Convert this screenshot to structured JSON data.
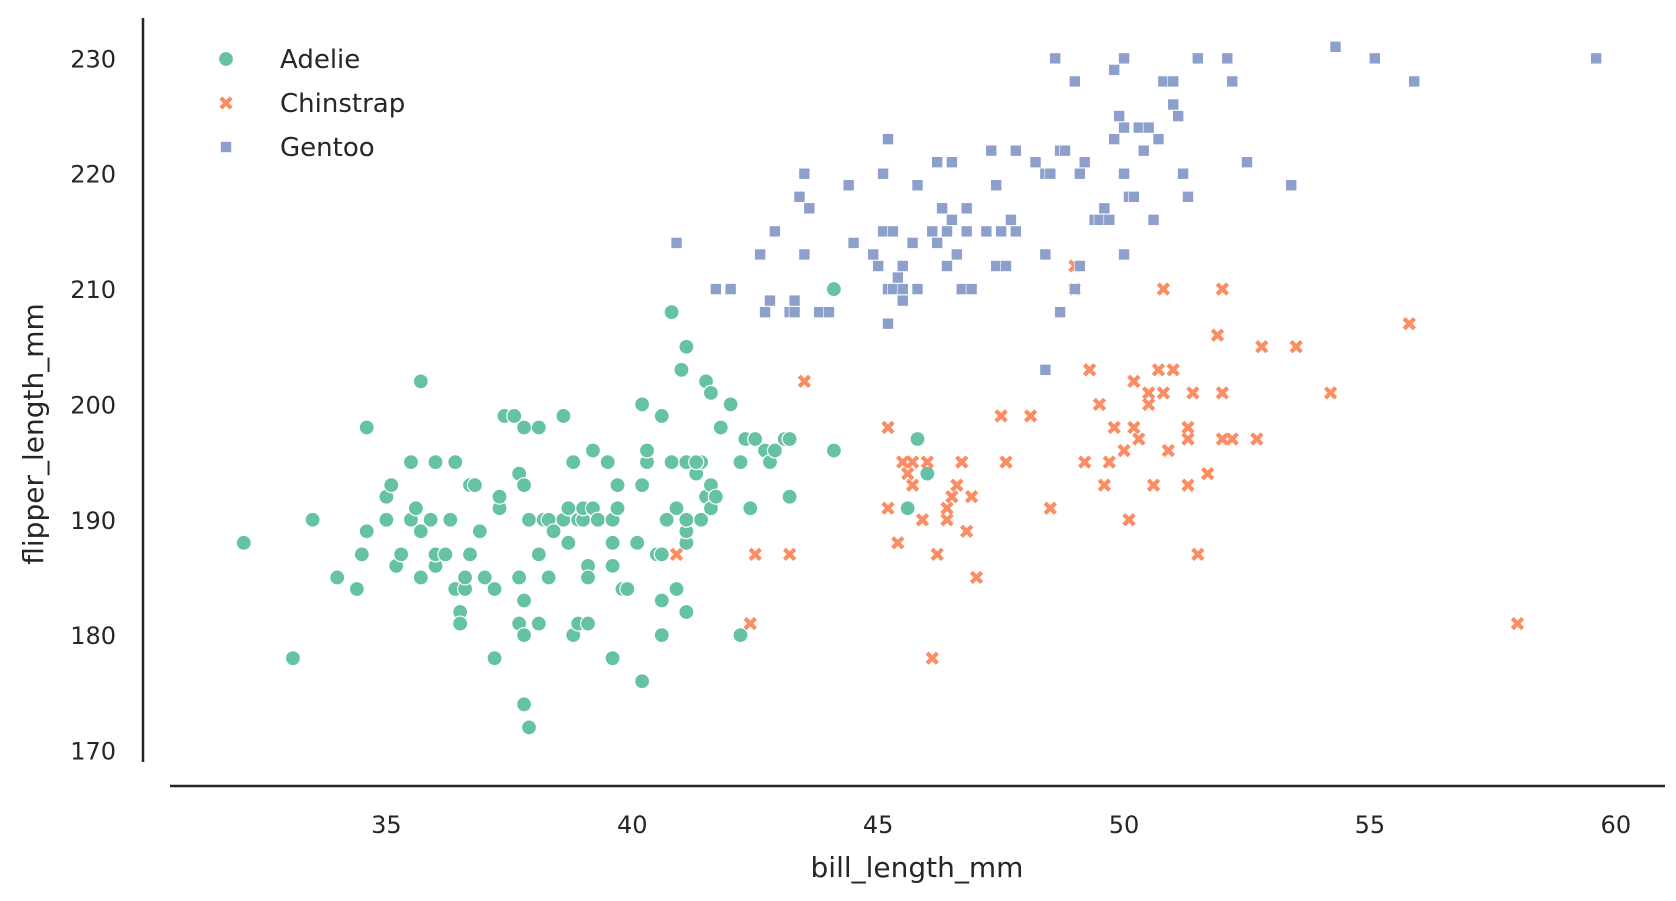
{
  "chart_data": {
    "type": "scatter",
    "xlabel": "bill_length_mm",
    "ylabel": "flipper_length_mm",
    "xlim": [
      30.6,
      61.0
    ],
    "ylim": [
      169.0,
      233.5
    ],
    "xticks": [
      35,
      40,
      45,
      50,
      55,
      60
    ],
    "yticks": [
      170,
      180,
      190,
      200,
      210,
      220,
      230
    ],
    "xtick_labels": [
      "35",
      "40",
      "45",
      "50",
      "55",
      "60"
    ],
    "ytick_labels": [
      "170",
      "180",
      "190",
      "200",
      "210",
      "220",
      "230"
    ],
    "grid": false,
    "legend": {
      "position": "top-left",
      "entries": [
        "Adelie",
        "Chinstrap",
        "Gentoo"
      ]
    },
    "series": [
      {
        "name": "Adelie",
        "marker": "circle",
        "color": "#66c2a5",
        "points": [
          [
            32.1,
            188
          ],
          [
            33.1,
            178
          ],
          [
            33.5,
            190
          ],
          [
            34.0,
            185
          ],
          [
            34.4,
            184
          ],
          [
            34.5,
            187
          ],
          [
            34.6,
            189
          ],
          [
            34.6,
            198
          ],
          [
            35.0,
            190
          ],
          [
            35.0,
            192
          ],
          [
            35.1,
            193
          ],
          [
            35.2,
            186
          ],
          [
            35.3,
            187
          ],
          [
            35.5,
            190
          ],
          [
            35.5,
            195
          ],
          [
            35.6,
            191
          ],
          [
            35.7,
            202
          ],
          [
            35.7,
            185
          ],
          [
            35.7,
            189
          ],
          [
            35.9,
            190
          ],
          [
            36.0,
            195
          ],
          [
            36.0,
            186
          ],
          [
            36.0,
            187
          ],
          [
            36.2,
            187
          ],
          [
            36.3,
            190
          ],
          [
            36.4,
            184
          ],
          [
            36.4,
            195
          ],
          [
            36.5,
            182
          ],
          [
            36.5,
            181
          ],
          [
            36.6,
            184
          ],
          [
            36.6,
            185
          ],
          [
            36.7,
            187
          ],
          [
            36.7,
            193
          ],
          [
            36.8,
            193
          ],
          [
            36.9,
            189
          ],
          [
            37.0,
            185
          ],
          [
            37.2,
            178
          ],
          [
            37.2,
            184
          ],
          [
            37.3,
            191
          ],
          [
            37.3,
            192
          ],
          [
            37.4,
            199
          ],
          [
            37.6,
            199
          ],
          [
            37.7,
            194
          ],
          [
            37.7,
            185
          ],
          [
            37.7,
            181
          ],
          [
            37.8,
            193
          ],
          [
            37.8,
            180
          ],
          [
            37.8,
            183
          ],
          [
            37.8,
            198
          ],
          [
            37.9,
            190
          ],
          [
            37.8,
            174
          ],
          [
            37.9,
            172
          ],
          [
            38.1,
            198
          ],
          [
            38.1,
            187
          ],
          [
            38.1,
            181
          ],
          [
            38.2,
            190
          ],
          [
            38.3,
            185
          ],
          [
            38.3,
            190
          ],
          [
            38.4,
            189
          ],
          [
            38.6,
            190
          ],
          [
            38.6,
            199
          ],
          [
            38.7,
            188
          ],
          [
            38.7,
            191
          ],
          [
            38.8,
            195
          ],
          [
            38.8,
            180
          ],
          [
            38.9,
            190
          ],
          [
            38.9,
            181
          ],
          [
            39.0,
            190
          ],
          [
            39.0,
            191
          ],
          [
            39.1,
            181
          ],
          [
            39.1,
            186
          ],
          [
            39.1,
            185
          ],
          [
            39.2,
            191
          ],
          [
            39.2,
            196
          ],
          [
            39.3,
            190
          ],
          [
            39.5,
            195
          ],
          [
            39.6,
            178
          ],
          [
            39.6,
            188
          ],
          [
            39.6,
            186
          ],
          [
            39.6,
            190
          ],
          [
            39.7,
            193
          ],
          [
            39.7,
            191
          ],
          [
            39.8,
            184
          ],
          [
            39.9,
            184
          ],
          [
            40.1,
            188
          ],
          [
            40.2,
            176
          ],
          [
            40.2,
            200
          ],
          [
            40.2,
            193
          ],
          [
            40.3,
            195
          ],
          [
            40.3,
            196
          ],
          [
            40.5,
            187
          ],
          [
            40.6,
            187
          ],
          [
            40.6,
            180
          ],
          [
            40.6,
            183
          ],
          [
            40.6,
            199
          ],
          [
            40.7,
            190
          ],
          [
            40.8,
            195
          ],
          [
            40.8,
            208
          ],
          [
            40.9,
            191
          ],
          [
            40.9,
            184
          ],
          [
            41.0,
            203
          ],
          [
            41.1,
            188
          ],
          [
            41.1,
            189
          ],
          [
            41.1,
            190
          ],
          [
            41.1,
            182
          ],
          [
            41.1,
            205
          ],
          [
            41.3,
            194
          ],
          [
            41.4,
            195
          ],
          [
            41.5,
            202
          ],
          [
            41.6,
            201
          ],
          [
            41.5,
            192
          ],
          [
            41.6,
            193
          ],
          [
            41.1,
            195
          ],
          [
            41.3,
            195
          ],
          [
            41.4,
            190
          ],
          [
            41.6,
            191
          ],
          [
            41.7,
            192
          ],
          [
            41.8,
            198
          ],
          [
            42.0,
            200
          ],
          [
            42.2,
            195
          ],
          [
            42.2,
            180
          ],
          [
            42.3,
            197
          ],
          [
            42.4,
            191
          ],
          [
            42.5,
            197
          ],
          [
            42.7,
            196
          ],
          [
            42.8,
            195
          ],
          [
            42.9,
            196
          ],
          [
            43.1,
            197
          ],
          [
            43.2,
            197
          ],
          [
            43.2,
            192
          ],
          [
            44.1,
            196
          ],
          [
            44.1,
            210
          ],
          [
            45.6,
            191
          ],
          [
            45.8,
            197
          ],
          [
            46.0,
            194
          ]
        ]
      },
      {
        "name": "Chinstrap",
        "marker": "x",
        "color": "#fc8d62",
        "points": [
          [
            40.9,
            187
          ],
          [
            42.4,
            181
          ],
          [
            42.5,
            187
          ],
          [
            43.2,
            187
          ],
          [
            43.5,
            202
          ],
          [
            45.2,
            191
          ],
          [
            45.2,
            198
          ],
          [
            45.4,
            188
          ],
          [
            45.5,
            195
          ],
          [
            45.6,
            194
          ],
          [
            45.7,
            195
          ],
          [
            45.7,
            193
          ],
          [
            45.9,
            190
          ],
          [
            46.0,
            195
          ],
          [
            46.1,
            178
          ],
          [
            46.2,
            187
          ],
          [
            46.4,
            191
          ],
          [
            46.4,
            190
          ],
          [
            46.5,
            192
          ],
          [
            46.6,
            193
          ],
          [
            46.7,
            195
          ],
          [
            46.8,
            189
          ],
          [
            46.9,
            192
          ],
          [
            47.0,
            185
          ],
          [
            47.5,
            199
          ],
          [
            47.6,
            195
          ],
          [
            48.1,
            199
          ],
          [
            48.5,
            191
          ],
          [
            49.0,
            212
          ],
          [
            49.0,
            210
          ],
          [
            49.2,
            195
          ],
          [
            49.3,
            203
          ],
          [
            49.5,
            200
          ],
          [
            49.6,
            193
          ],
          [
            49.7,
            195
          ],
          [
            49.8,
            198
          ],
          [
            50.0,
            196
          ],
          [
            50.1,
            190
          ],
          [
            50.2,
            198
          ],
          [
            50.2,
            202
          ],
          [
            50.3,
            197
          ],
          [
            50.5,
            200
          ],
          [
            50.5,
            201
          ],
          [
            50.6,
            193
          ],
          [
            50.7,
            203
          ],
          [
            50.8,
            201
          ],
          [
            50.8,
            210
          ],
          [
            50.9,
            196
          ],
          [
            51.0,
            203
          ],
          [
            51.3,
            197
          ],
          [
            51.3,
            198
          ],
          [
            51.3,
            193
          ],
          [
            51.4,
            201
          ],
          [
            51.5,
            187
          ],
          [
            51.7,
            194
          ],
          [
            51.9,
            206
          ],
          [
            52.0,
            201
          ],
          [
            52.0,
            197
          ],
          [
            52.0,
            210
          ],
          [
            52.2,
            197
          ],
          [
            52.7,
            197
          ],
          [
            52.8,
            205
          ],
          [
            53.5,
            205
          ],
          [
            54.2,
            201
          ],
          [
            55.8,
            207
          ],
          [
            58.0,
            181
          ]
        ]
      },
      {
        "name": "Gentoo",
        "marker": "square",
        "color": "#8da0cb",
        "points": [
          [
            40.9,
            214
          ],
          [
            41.7,
            210
          ],
          [
            42.0,
            210
          ],
          [
            42.6,
            213
          ],
          [
            42.7,
            208
          ],
          [
            42.8,
            209
          ],
          [
            42.9,
            215
          ],
          [
            43.2,
            208
          ],
          [
            43.3,
            209
          ],
          [
            43.3,
            208
          ],
          [
            43.4,
            218
          ],
          [
            43.5,
            213
          ],
          [
            43.5,
            220
          ],
          [
            43.6,
            217
          ],
          [
            43.8,
            208
          ],
          [
            44.0,
            208
          ],
          [
            44.4,
            219
          ],
          [
            44.5,
            214
          ],
          [
            44.9,
            213
          ],
          [
            45.0,
            212
          ],
          [
            45.1,
            220
          ],
          [
            45.1,
            215
          ],
          [
            45.2,
            210
          ],
          [
            45.2,
            207
          ],
          [
            45.2,
            223
          ],
          [
            45.3,
            210
          ],
          [
            45.3,
            215
          ],
          [
            45.4,
            211
          ],
          [
            45.5,
            210
          ],
          [
            45.5,
            212
          ],
          [
            45.5,
            209
          ],
          [
            45.7,
            214
          ],
          [
            45.8,
            210
          ],
          [
            45.8,
            219
          ],
          [
            46.1,
            215
          ],
          [
            46.2,
            214
          ],
          [
            46.2,
            221
          ],
          [
            46.3,
            217
          ],
          [
            46.4,
            215
          ],
          [
            46.4,
            212
          ],
          [
            46.5,
            216
          ],
          [
            46.5,
            221
          ],
          [
            46.6,
            213
          ],
          [
            46.7,
            210
          ],
          [
            46.8,
            215
          ],
          [
            46.8,
            217
          ],
          [
            46.9,
            210
          ],
          [
            47.2,
            215
          ],
          [
            47.3,
            222
          ],
          [
            47.4,
            212
          ],
          [
            47.5,
            215
          ],
          [
            47.6,
            212
          ],
          [
            47.7,
            216
          ],
          [
            47.8,
            215
          ],
          [
            47.8,
            222
          ],
          [
            48.2,
            221
          ],
          [
            48.4,
            213
          ],
          [
            48.4,
            220
          ],
          [
            48.5,
            220
          ],
          [
            48.6,
            230
          ],
          [
            48.7,
            208
          ],
          [
            48.7,
            222
          ],
          [
            48.8,
            222
          ],
          [
            49.0,
            210
          ],
          [
            49.1,
            212
          ],
          [
            49.1,
            220
          ],
          [
            49.2,
            221
          ],
          [
            49.4,
            216
          ],
          [
            49.5,
            216
          ],
          [
            49.6,
            217
          ],
          [
            49.7,
            216
          ],
          [
            49.8,
            223
          ],
          [
            49.8,
            229
          ],
          [
            49.9,
            225
          ],
          [
            50.0,
            230
          ],
          [
            50.0,
            224
          ],
          [
            50.0,
            220
          ],
          [
            50.1,
            218
          ],
          [
            50.2,
            218
          ],
          [
            50.3,
            224
          ],
          [
            50.4,
            222
          ],
          [
            50.5,
            224
          ],
          [
            50.6,
            216
          ],
          [
            50.7,
            223
          ],
          [
            50.8,
            228
          ],
          [
            51.0,
            228
          ],
          [
            51.0,
            226
          ],
          [
            51.1,
            225
          ],
          [
            51.2,
            220
          ],
          [
            51.3,
            218
          ],
          [
            51.5,
            230
          ],
          [
            52.1,
            230
          ],
          [
            52.2,
            228
          ],
          [
            52.5,
            221
          ],
          [
            53.4,
            219
          ],
          [
            54.3,
            231
          ],
          [
            55.1,
            230
          ],
          [
            55.9,
            228
          ],
          [
            59.6,
            230
          ],
          [
            50.0,
            213
          ],
          [
            47.4,
            219
          ],
          [
            48.4,
            203
          ],
          [
            49.0,
            228
          ]
        ]
      }
    ]
  }
}
